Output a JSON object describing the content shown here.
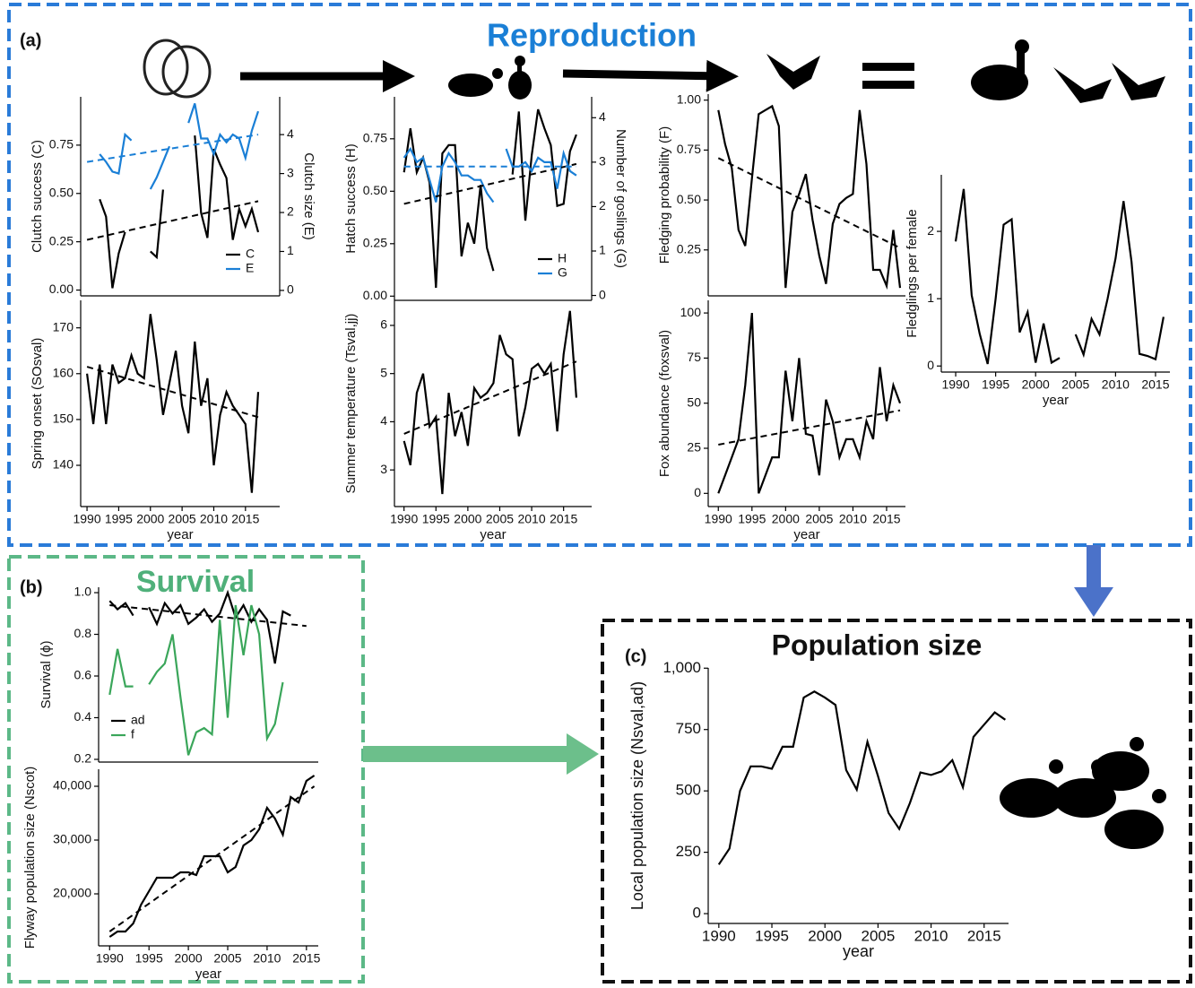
{
  "panel_labels": [
    "(a)",
    "(b)",
    "(c)"
  ],
  "headings": {
    "reproduction": "Reproduction",
    "survival": "Survival",
    "population": "Population size"
  },
  "chart_data": [
    {
      "type": "line",
      "x": [
        1990,
        1991,
        1992,
        1993,
        1994,
        1995,
        1996,
        1997,
        1998,
        1999,
        2000,
        2001,
        2002,
        2003,
        2004,
        2005,
        2006,
        2007,
        2008,
        2009,
        2010,
        2011,
        2012,
        2013,
        2014,
        2015,
        2016,
        2017
      ],
      "xlim": [
        1989,
        2020.4
      ],
      "ylim": [
        -0.03,
        1.0
      ],
      "y2lim": [
        -0.14,
        4.97
      ],
      "yticks": [
        {
          "value": 0,
          "label": "0.00"
        },
        {
          "value": 0.25,
          "label": "0.25"
        },
        {
          "value": 0.5,
          "label": "0.50"
        },
        {
          "value": 0.75,
          "label": "0.75"
        }
      ],
      "y2ticks": [
        0,
        1,
        2,
        3,
        4
      ],
      "ylabel": "Clutch success (C)",
      "y2label": "Clutch size (E)",
      "legend": "lower right",
      "series": [
        {
          "name": "C",
          "color": "#000000",
          "values": [
            null,
            null,
            0.47,
            0.38,
            0.01,
            0.19,
            0.3,
            null,
            null,
            null,
            0.2,
            0.17,
            0.52,
            null,
            null,
            null,
            null,
            0.8,
            0.4,
            0.27,
            0.73,
            0.65,
            0.58,
            0.26,
            0.42,
            0.33,
            0.42,
            0.3
          ]
        },
        {
          "name": "E",
          "color": "#1a7fd6",
          "axis": "y2",
          "values": [
            null,
            null,
            3.5,
            3.3,
            3.05,
            3.0,
            4.0,
            3.85,
            null,
            null,
            2.6,
            2.9,
            3.3,
            3.7,
            null,
            null,
            4.3,
            4.8,
            3.9,
            3.9,
            3.5,
            4.0,
            3.8,
            4.0,
            3.9,
            3.4,
            4.1,
            4.6
          ]
        }
      ],
      "trends": [
        {
          "color": "#000000",
          "x": [
            1990,
            2017
          ],
          "values": [
            0.26,
            0.46
          ]
        },
        {
          "color": "#1a7fd6",
          "axis": "y2",
          "x": [
            1990,
            2017
          ],
          "values": [
            3.3,
            4.0
          ]
        }
      ]
    },
    {
      "type": "line",
      "x": [
        1990,
        1991,
        1992,
        1993,
        1994,
        1995,
        1996,
        1997,
        1998,
        1999,
        2000,
        2001,
        2002,
        2003,
        2004,
        2005,
        2006,
        2007,
        2008,
        2009,
        2010,
        2011,
        2012,
        2013,
        2014,
        2015,
        2016,
        2017
      ],
      "xlim": [
        1989,
        2020.4
      ],
      "ylim": [
        131,
        176
      ],
      "yticks": [
        140,
        150,
        160,
        170
      ],
      "xticks": [
        1990,
        1995,
        2000,
        2005,
        2010,
        2015
      ],
      "ylabel": "Spring onset (SOsval)",
      "xlabel": "year",
      "series": [
        {
          "color": "#000000",
          "values": [
            160,
            149,
            162,
            149,
            162,
            158,
            159,
            164,
            160,
            159,
            173,
            163,
            151,
            158,
            165,
            153,
            147,
            167,
            153,
            159,
            140,
            151,
            156,
            153,
            151,
            149,
            134,
            156
          ]
        }
      ],
      "trends": [
        {
          "color": "#000000",
          "x": [
            1990,
            2017
          ],
          "values": [
            161.5,
            150.5
          ]
        }
      ]
    },
    {
      "type": "line",
      "x": [
        1990,
        1991,
        1992,
        1993,
        1994,
        1995,
        1996,
        1997,
        1998,
        1999,
        2000,
        2001,
        2002,
        2003,
        2004,
        2005,
        2006,
        2007,
        2008,
        2009,
        2010,
        2011,
        2012,
        2013,
        2014,
        2015,
        2016,
        2017
      ],
      "xlim": [
        1988.5,
        2019.4
      ],
      "ylim": [
        -0.02,
        0.95
      ],
      "y2lim": [
        -0.11,
        4.47
      ],
      "yticks": [
        {
          "value": 0,
          "label": "0.00"
        },
        {
          "value": 0.25,
          "label": "0.25"
        },
        {
          "value": 0.5,
          "label": "0.50"
        },
        {
          "value": 0.75,
          "label": "0.75"
        }
      ],
      "y2ticks": [
        0,
        1,
        2,
        3,
        4
      ],
      "ylabel": "Hatch success (H)",
      "y2label": "Number of goslings (G)",
      "legend": "lower right",
      "series": [
        {
          "name": "H",
          "color": "#000000",
          "values": [
            0.59,
            0.8,
            0.59,
            0.66,
            0.54,
            0.04,
            0.68,
            0.72,
            0.72,
            0.19,
            0.35,
            0.25,
            0.53,
            0.23,
            0.12,
            null,
            null,
            0.58,
            0.88,
            0.36,
            0.67,
            0.89,
            0.8,
            0.72,
            0.43,
            0.44,
            0.69,
            0.77
          ]
        },
        {
          "name": "G",
          "color": "#1a7fd6",
          "axis": "y2",
          "values": [
            3.1,
            3.3,
            3.0,
            3.1,
            2.6,
            2.1,
            2.9,
            3.2,
            3.0,
            2.7,
            2.7,
            2.6,
            2.6,
            2.3,
            2.1,
            null,
            3.3,
            2.9,
            2.9,
            3.0,
            2.8,
            3.1,
            3.0,
            3.0,
            2.4,
            3.2,
            2.8,
            2.7
          ]
        }
      ],
      "trends": [
        {
          "color": "#000000",
          "x": [
            1990,
            2017
          ],
          "values": [
            0.44,
            0.63
          ]
        },
        {
          "color": "#1a7fd6",
          "axis": "y2",
          "x": [
            1990,
            2017
          ],
          "values": [
            2.9,
            2.9
          ]
        }
      ]
    },
    {
      "type": "line",
      "x": [
        1990,
        1991,
        1992,
        1993,
        1994,
        1995,
        1996,
        1997,
        1998,
        1999,
        2000,
        2001,
        2002,
        2003,
        2004,
        2005,
        2006,
        2007,
        2008,
        2009,
        2010,
        2011,
        2012,
        2013,
        2014,
        2015,
        2016,
        2017
      ],
      "xlim": [
        1988.5,
        2019.4
      ],
      "ylim": [
        2.24,
        6.52
      ],
      "yticks": [
        3,
        4,
        5,
        6
      ],
      "xticks": [
        1990,
        1995,
        2000,
        2005,
        2010,
        2015
      ],
      "ylabel": "Summer temperature (Tsval,jj)",
      "xlabel": "year",
      "series": [
        {
          "color": "#000000",
          "values": [
            3.6,
            3.1,
            4.6,
            5.0,
            3.9,
            4.1,
            2.5,
            4.6,
            3.7,
            4.2,
            3.5,
            4.7,
            4.5,
            4.6,
            4.8,
            5.8,
            5.4,
            5.3,
            3.7,
            4.3,
            5.1,
            5.2,
            5.0,
            5.2,
            3.8,
            5.4,
            6.3,
            4.5
          ]
        }
      ],
      "trends": [
        {
          "color": "#000000",
          "x": [
            1990,
            2017
          ],
          "values": [
            3.75,
            5.25
          ]
        }
      ]
    },
    {
      "type": "line",
      "x": [
        1990,
        1991,
        1992,
        1993,
        1994,
        1995,
        1996,
        1997,
        1998,
        1999,
        2000,
        2001,
        2002,
        2003,
        2004,
        2005,
        2006,
        2007,
        2008,
        2009,
        2010,
        2011,
        2012,
        2013,
        2014,
        2015,
        2016,
        2017
      ],
      "xlim": [
        1988.5,
        2017.8
      ],
      "ylim": [
        0.02,
        1.03
      ],
      "yticks": [
        {
          "value": 0.25,
          "label": "0.25"
        },
        {
          "value": 0.5,
          "label": "0.50"
        },
        {
          "value": 0.75,
          "label": "0.75"
        },
        {
          "value": 1,
          "label": "1.00"
        }
      ],
      "ylabel": "Fledging probability (F)",
      "series": [
        {
          "color": "#000000",
          "values": [
            0.95,
            0.78,
            0.66,
            0.35,
            0.27,
            0.61,
            0.93,
            0.95,
            0.97,
            0.87,
            0.06,
            0.44,
            0.53,
            0.63,
            0.4,
            0.22,
            0.08,
            0.38,
            0.48,
            0.51,
            0.53,
            0.95,
            0.68,
            0.15,
            0.15,
            0.07,
            0.35,
            0.06
          ]
        }
      ],
      "trends": [
        {
          "color": "#000000",
          "x": [
            1990,
            2017
          ],
          "values": [
            0.71,
            0.26
          ]
        }
      ]
    },
    {
      "type": "line",
      "x": [
        1990,
        1991,
        1992,
        1993,
        1994,
        1995,
        1996,
        1997,
        1998,
        1999,
        2000,
        2001,
        2002,
        2003,
        2004,
        2005,
        2006,
        2007,
        2008,
        2009,
        2010,
        2011,
        2012,
        2013,
        2014,
        2015,
        2016,
        2017
      ],
      "xlim": [
        1988.5,
        2017.8
      ],
      "ylim": [
        -7.3,
        107
      ],
      "yticks": [
        0,
        25,
        50,
        75,
        100
      ],
      "xticks": [
        1990,
        1995,
        2000,
        2005,
        2010,
        2015
      ],
      "ylabel": "Fox abundance (foxsval)",
      "xlabel": "year",
      "series": [
        {
          "color": "#000000",
          "values": [
            0,
            10,
            20,
            30,
            60,
            100,
            0,
            10,
            20,
            20,
            68,
            40,
            75,
            33,
            32,
            10,
            52,
            40,
            20,
            30,
            30,
            20,
            40,
            30,
            70,
            40,
            60,
            50
          ]
        }
      ],
      "trends": [
        {
          "color": "#000000",
          "x": [
            1990,
            2017
          ],
          "values": [
            27,
            46
          ]
        }
      ]
    },
    {
      "type": "line",
      "x": [
        1990,
        1991,
        1992,
        1993,
        1994,
        1995,
        1996,
        1997,
        1998,
        1999,
        2000,
        2001,
        2002,
        2003,
        2004,
        2005,
        2006,
        2007,
        2008,
        2009,
        2010,
        2011,
        2012,
        2013,
        2014,
        2015,
        2016,
        2017
      ],
      "xlim": [
        1988.2,
        2016.8
      ],
      "ylim": [
        -0.09,
        2.84
      ],
      "yticks": [
        0,
        1,
        2
      ],
      "xticks": [
        1990,
        1995,
        2000,
        2005,
        2010,
        2015
      ],
      "ylabel": "Fledglings per female",
      "xlabel": "year",
      "series": [
        {
          "color": "#000000",
          "values": [
            1.85,
            2.63,
            1.05,
            0.48,
            0.03,
            1.0,
            2.1,
            2.18,
            0.5,
            0.8,
            0.05,
            0.63,
            0.05,
            0.12,
            null,
            0.47,
            0.17,
            0.7,
            0.47,
            1.0,
            1.6,
            2.45,
            1.55,
            0.18,
            0.15,
            0.1,
            0.73,
            null
          ]
        }
      ]
    },
    {
      "type": "line",
      "x": [
        1990,
        1991,
        1992,
        1993,
        1994,
        1995,
        1996,
        1997,
        1998,
        1999,
        2000,
        2001,
        2002,
        2003,
        2004,
        2005,
        2006,
        2007,
        2008,
        2009,
        2010,
        2011,
        2012,
        2013
      ],
      "xlim": [
        1988.6,
        2016.5
      ],
      "ylim": [
        0.187,
        1.026
      ],
      "yticks": [
        0.2,
        0.4,
        0.6,
        0.8,
        {
          "value": 1,
          "label": "1.0"
        }
      ],
      "ylabel": "Survival (ϕ)",
      "legend": "lower left",
      "series": [
        {
          "name": "ad",
          "color": "#000000",
          "values": [
            0.96,
            0.92,
            0.95,
            0.89,
            null,
            0.93,
            0.85,
            0.95,
            0.9,
            0.94,
            0.85,
            0.88,
            0.92,
            0.86,
            0.9,
            1.0,
            0.88,
            0.94,
            0.86,
            0.92,
            0.87,
            0.66,
            0.91,
            0.89
          ]
        },
        {
          "name": "f",
          "color": "#3aa65a",
          "values": [
            0.51,
            0.73,
            0.55,
            0.55,
            null,
            0.56,
            0.62,
            0.66,
            0.8,
            0.5,
            0.22,
            0.33,
            0.35,
            0.32,
            0.87,
            0.4,
            0.94,
            0.7,
            0.94,
            0.8,
            0.3,
            0.37,
            0.57,
            null
          ]
        }
      ],
      "trends": [
        {
          "color": "#000000",
          "x": [
            1990,
            2015
          ],
          "values": [
            0.94,
            0.84
          ]
        }
      ]
    },
    {
      "type": "line",
      "x": [
        1990,
        1991,
        1992,
        1993,
        1994,
        1995,
        1996,
        1997,
        1998,
        1999,
        2000,
        2001,
        2002,
        2003,
        2004,
        2005,
        2006,
        2007,
        2008,
        2009,
        2010,
        2011,
        2012,
        2013,
        2014,
        2015,
        2016
      ],
      "xlim": [
        1988.6,
        2016.5
      ],
      "ylim": [
        10333,
        43167
      ],
      "yticks": [
        {
          "value": 20000,
          "label": "20,000"
        },
        {
          "value": 30000,
          "label": "30,000"
        },
        {
          "value": 40000,
          "label": "40,000"
        }
      ],
      "xticks": [
        1990,
        1995,
        2000,
        2005,
        2010,
        2015
      ],
      "ylabel": "Flyway population size (Nscot)",
      "xlabel": "year",
      "series": [
        {
          "color": "#000000",
          "values": [
            12000,
            13000,
            13000,
            14500,
            18000,
            20500,
            23000,
            23000,
            23000,
            24000,
            24000,
            23500,
            27000,
            27000,
            27000,
            24000,
            25000,
            29000,
            30000,
            32000,
            36000,
            34000,
            31000,
            38000,
            37000,
            41000,
            42000
          ]
        }
      ],
      "trends": [
        {
          "color": "#000000",
          "x": [
            1990,
            2016
          ],
          "values": [
            13000,
            40000
          ]
        }
      ]
    },
    {
      "type": "line",
      "x": [
        1990,
        1991,
        1992,
        1993,
        1994,
        1995,
        1996,
        1997,
        1998,
        1999,
        2000,
        2001,
        2002,
        2003,
        2004,
        2005,
        2006,
        2007,
        2008,
        2009,
        2010,
        2011,
        2012,
        2013,
        2014,
        2015,
        2016,
        2017
      ],
      "xlim": [
        1989,
        2017.3
      ],
      "ylim": [
        -40,
        1001
      ],
      "yticks": [
        0,
        250,
        500,
        750,
        {
          "value": 1000,
          "label": "1,000"
        }
      ],
      "xticks": [
        1990,
        1995,
        2000,
        2005,
        2010,
        2015
      ],
      "ylabel": "Local population size (Nsval,ad)",
      "xlabel": "year",
      "series": [
        {
          "color": "#000000",
          "values": [
            200,
            265,
            500,
            600,
            600,
            590,
            680,
            680,
            880,
            905,
            880,
            850,
            585,
            505,
            700,
            560,
            410,
            345,
            450,
            575,
            565,
            580,
            625,
            515,
            720,
            770,
            820,
            790
          ]
        }
      ]
    }
  ]
}
